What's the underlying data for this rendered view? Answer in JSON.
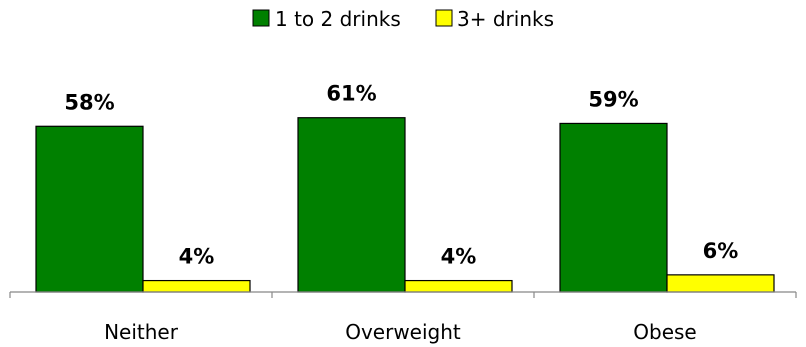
{
  "chart_data": {
    "type": "bar",
    "categories": [
      "Neither",
      "Overweight",
      "Obese"
    ],
    "series": [
      {
        "name": "1 to 2 drinks",
        "values": [
          58,
          61,
          59
        ],
        "labels": [
          "58%",
          "61%",
          "59%"
        ],
        "color": "#008000"
      },
      {
        "name": "3+ drinks",
        "values": [
          4,
          4,
          6
        ],
        "labels": [
          "4%",
          "4%",
          "6%"
        ],
        "color": "#ffff00"
      }
    ],
    "ylim": [
      0,
      70
    ],
    "legend_position": "top",
    "grid": false
  }
}
